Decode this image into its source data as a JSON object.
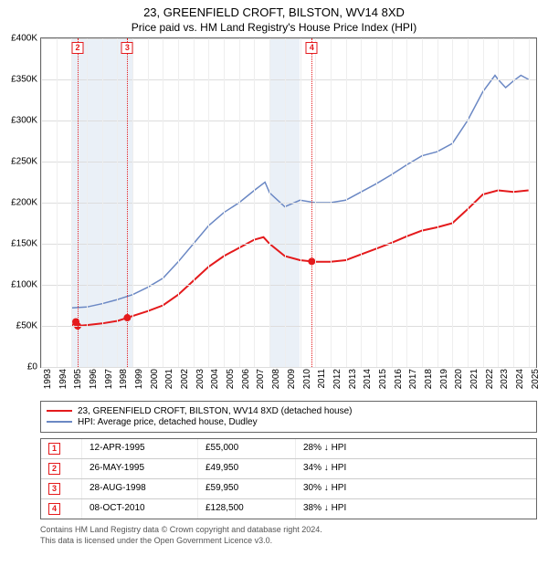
{
  "title_line1": "23, GREENFIELD CROFT, BILSTON, WV14 8XD",
  "title_line2": "Price paid vs. HM Land Registry's House Price Index (HPI)",
  "chart": {
    "type": "line",
    "x_min": 1993,
    "x_max": 2025.5,
    "y_min": 0,
    "y_max": 400000,
    "y_ticks": [
      0,
      50000,
      100000,
      150000,
      200000,
      250000,
      300000,
      350000,
      400000
    ],
    "y_tick_labels": [
      "£0",
      "£50K",
      "£100K",
      "£150K",
      "£200K",
      "£250K",
      "£300K",
      "£350K",
      "£400K"
    ],
    "x_ticks": [
      1993,
      1994,
      1995,
      1996,
      1997,
      1998,
      1999,
      2000,
      2001,
      2002,
      2003,
      2004,
      2005,
      2006,
      2007,
      2008,
      2009,
      2010,
      2011,
      2012,
      2013,
      2014,
      2015,
      2016,
      2017,
      2018,
      2019,
      2020,
      2021,
      2022,
      2023,
      2024,
      2025
    ],
    "grid_color": "#dddddd",
    "minor_grid_color": "#eeeeee",
    "background_color": "#ffffff",
    "recession_band_color": "#eaf0f7",
    "recession_bands": [
      [
        1995,
        1999
      ],
      [
        2008,
        2010
      ]
    ],
    "vmarker_color": "#e41a1c",
    "vmarkers": [
      {
        "n": "2",
        "x": 1995.4
      },
      {
        "n": "3",
        "x": 1998.66
      },
      {
        "n": "4",
        "x": 2010.77
      }
    ],
    "series": [
      {
        "name": "subject",
        "label": "23, GREENFIELD CROFT, BILSTON, WV14 8XD (detached house)",
        "color": "#e41a1c",
        "width": 2,
        "points": [
          [
            1995,
            50000
          ],
          [
            1995.28,
            55000
          ],
          [
            1995.4,
            49950
          ],
          [
            1996,
            51000
          ],
          [
            1997,
            53000
          ],
          [
            1998,
            56000
          ],
          [
            1998.66,
            59950
          ],
          [
            1999,
            62000
          ],
          [
            2000,
            68000
          ],
          [
            2001,
            75000
          ],
          [
            2002,
            88000
          ],
          [
            2003,
            105000
          ],
          [
            2004,
            122000
          ],
          [
            2005,
            135000
          ],
          [
            2006,
            145000
          ],
          [
            2007,
            155000
          ],
          [
            2007.6,
            158000
          ],
          [
            2008,
            150000
          ],
          [
            2009,
            135000
          ],
          [
            2010,
            130000
          ],
          [
            2010.77,
            128500
          ],
          [
            2011,
            128000
          ],
          [
            2012,
            128000
          ],
          [
            2013,
            130000
          ],
          [
            2014,
            137000
          ],
          [
            2015,
            144000
          ],
          [
            2016,
            151000
          ],
          [
            2017,
            159000
          ],
          [
            2018,
            166000
          ],
          [
            2019,
            170000
          ],
          [
            2020,
            175000
          ],
          [
            2021,
            192000
          ],
          [
            2022,
            210000
          ],
          [
            2023,
            215000
          ],
          [
            2024,
            213000
          ],
          [
            2025,
            215000
          ]
        ],
        "sale_points": [
          [
            1995.28,
            55000
          ],
          [
            1995.4,
            49950
          ],
          [
            1998.66,
            59950
          ],
          [
            2010.77,
            128500
          ]
        ]
      },
      {
        "name": "hpi",
        "label": "HPI: Average price, detached house, Dudley",
        "color": "#6b88c4",
        "width": 1.5,
        "points": [
          [
            1995,
            72000
          ],
          [
            1996,
            73000
          ],
          [
            1997,
            77000
          ],
          [
            1998,
            82000
          ],
          [
            1999,
            88000
          ],
          [
            2000,
            97000
          ],
          [
            2001,
            108000
          ],
          [
            2002,
            128000
          ],
          [
            2003,
            150000
          ],
          [
            2004,
            172000
          ],
          [
            2005,
            188000
          ],
          [
            2006,
            200000
          ],
          [
            2007,
            215000
          ],
          [
            2007.7,
            225000
          ],
          [
            2008,
            212000
          ],
          [
            2009,
            195000
          ],
          [
            2010,
            203000
          ],
          [
            2011,
            200000
          ],
          [
            2012,
            200000
          ],
          [
            2013,
            203000
          ],
          [
            2014,
            213000
          ],
          [
            2015,
            223000
          ],
          [
            2016,
            234000
          ],
          [
            2017,
            246000
          ],
          [
            2018,
            257000
          ],
          [
            2019,
            262000
          ],
          [
            2020,
            272000
          ],
          [
            2021,
            300000
          ],
          [
            2022,
            335000
          ],
          [
            2022.8,
            355000
          ],
          [
            2023,
            350000
          ],
          [
            2023.5,
            340000
          ],
          [
            2024,
            348000
          ],
          [
            2024.5,
            355000
          ],
          [
            2025,
            350000
          ]
        ]
      }
    ]
  },
  "legend_items": [
    {
      "color": "#e41a1c",
      "label": "23, GREENFIELD CROFT, BILSTON, WV14 8XD (detached house)"
    },
    {
      "color": "#6b88c4",
      "label": "HPI: Average price, detached house, Dudley"
    }
  ],
  "sales_table": {
    "col_widths": [
      "28px",
      "110px",
      "90px",
      "110px"
    ],
    "rows": [
      {
        "n": "1",
        "date": "12-APR-1995",
        "price": "£55,000",
        "note": "28% ↓ HPI"
      },
      {
        "n": "2",
        "date": "26-MAY-1995",
        "price": "£49,950",
        "note": "34% ↓ HPI"
      },
      {
        "n": "3",
        "date": "28-AUG-1998",
        "price": "£59,950",
        "note": "30% ↓ HPI"
      },
      {
        "n": "4",
        "date": "08-OCT-2010",
        "price": "£128,500",
        "note": "38% ↓ HPI"
      }
    ]
  },
  "footer_line1": "Contains HM Land Registry data © Crown copyright and database right 2024.",
  "footer_line2": "This data is licensed under the Open Government Licence v3.0."
}
